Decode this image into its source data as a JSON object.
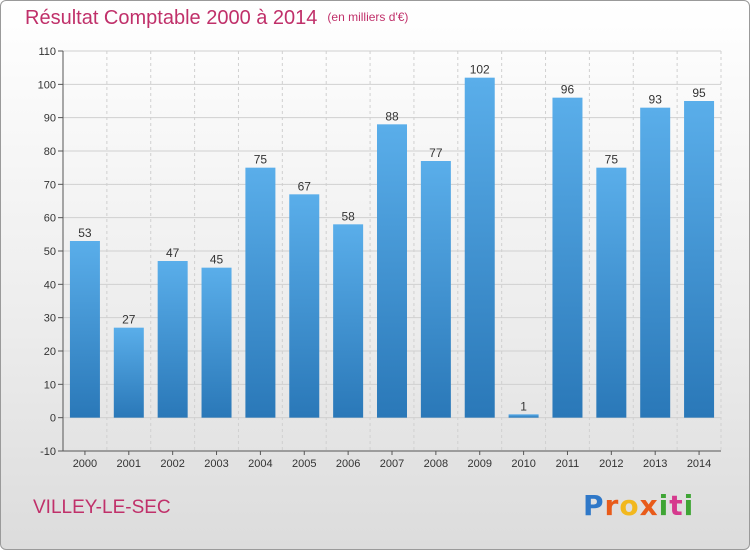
{
  "chart_data": {
    "type": "bar",
    "title": "Résultat Comptable 2000 à 2014",
    "unit_note": "(en milliers d'€)",
    "categories": [
      "2000",
      "2001",
      "2002",
      "2003",
      "2004",
      "2005",
      "2006",
      "2007",
      "2008",
      "2009",
      "2010",
      "2011",
      "2012",
      "2013",
      "2014"
    ],
    "values": [
      53,
      27,
      47,
      45,
      75,
      67,
      58,
      88,
      77,
      102,
      1,
      96,
      75,
      93,
      95
    ],
    "ylim": [
      -10,
      110
    ],
    "yticks": [
      -10,
      0,
      10,
      20,
      30,
      40,
      50,
      60,
      70,
      80,
      90,
      100,
      110
    ],
    "grid": true,
    "bar_color_top": "#5aaeea",
    "bar_color_bottom": "#2a78b8"
  },
  "location": "VILLEY-LE-SEC",
  "brand": {
    "p1": "P",
    "p2": "r",
    "p3": "o",
    "p4": "x",
    "p5": "i",
    "p6": "t",
    "p7": "i"
  }
}
